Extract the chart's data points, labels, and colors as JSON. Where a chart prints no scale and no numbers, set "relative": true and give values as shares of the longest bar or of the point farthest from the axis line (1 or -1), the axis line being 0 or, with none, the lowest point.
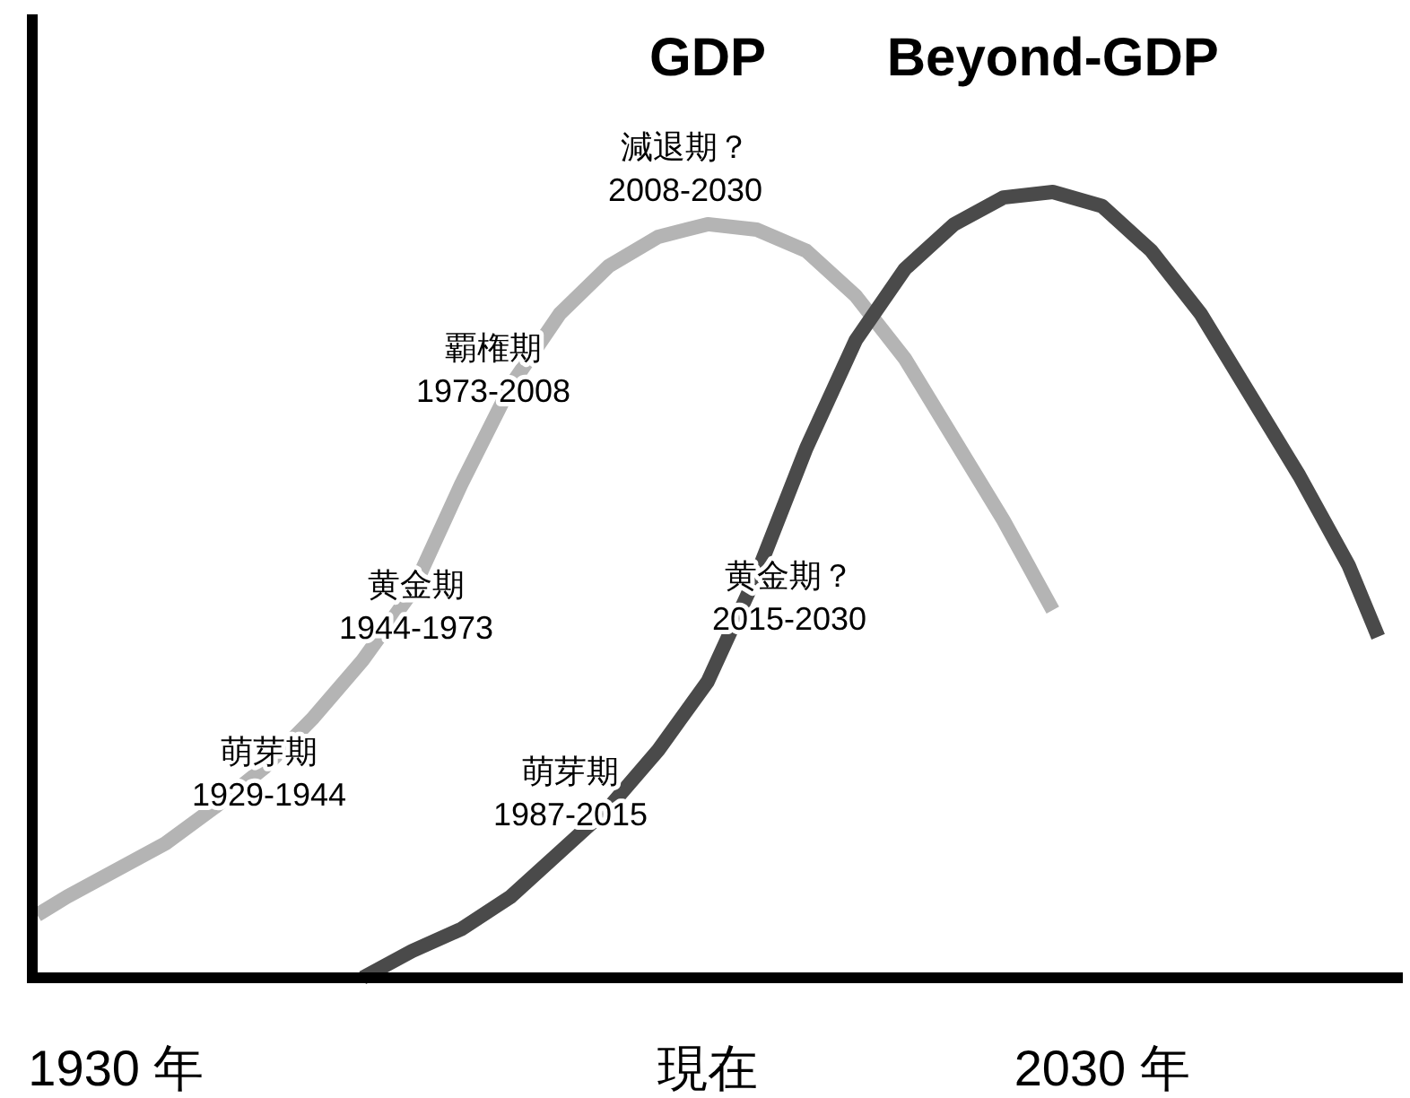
{
  "chart_data": {
    "type": "line",
    "relative": true,
    "xlim": [
      1921.5,
      2060.5
    ],
    "xticks": [
      {
        "value": 1930,
        "label": "1930 年"
      },
      {
        "value": 1990,
        "label": "現在"
      },
      {
        "value": 2030,
        "label": "2030 年"
      }
    ],
    "series": [
      {
        "name": "GDP",
        "color": "#b4b4b4",
        "x": [
          1922,
          1925,
          1930,
          1935,
          1940,
          1945,
          1950,
          1955,
          1960,
          1965,
          1970,
          1975,
          1980,
          1985,
          1990,
          1995,
          2000,
          2005,
          2010,
          2015,
          2020,
          2025
        ],
        "values": [
          0.08,
          0.103,
          0.137,
          0.171,
          0.217,
          0.267,
          0.331,
          0.404,
          0.491,
          0.628,
          0.753,
          0.845,
          0.906,
          0.943,
          0.959,
          0.952,
          0.925,
          0.868,
          0.788,
          0.685,
          0.582,
          0.468
        ]
      },
      {
        "name": "Beyond-GDP",
        "color": "#4a4a4a",
        "x": [
          1955,
          1960,
          1965,
          1970,
          1975,
          1980,
          1985,
          1990,
          1995,
          2000,
          2005,
          2010,
          2015,
          2020,
          2025,
          2030,
          2035,
          2040,
          2045,
          2050,
          2055,
          2058
        ],
        "values": [
          0,
          0.034,
          0.062,
          0.103,
          0.16,
          0.217,
          0.29,
          0.377,
          0.514,
          0.674,
          0.811,
          0.902,
          0.959,
          0.993,
          1,
          0.982,
          0.925,
          0.845,
          0.742,
          0.639,
          0.525,
          0.434
        ]
      }
    ],
    "annotations": [
      "萌芽期\n1929-1944",
      "黄金期\n1944-1973",
      "覇権期\n1973-2008",
      "減退期？\n2008-2030",
      "萌芽期\n1987-2015",
      "黄金期？\n2015-2030"
    ]
  }
}
